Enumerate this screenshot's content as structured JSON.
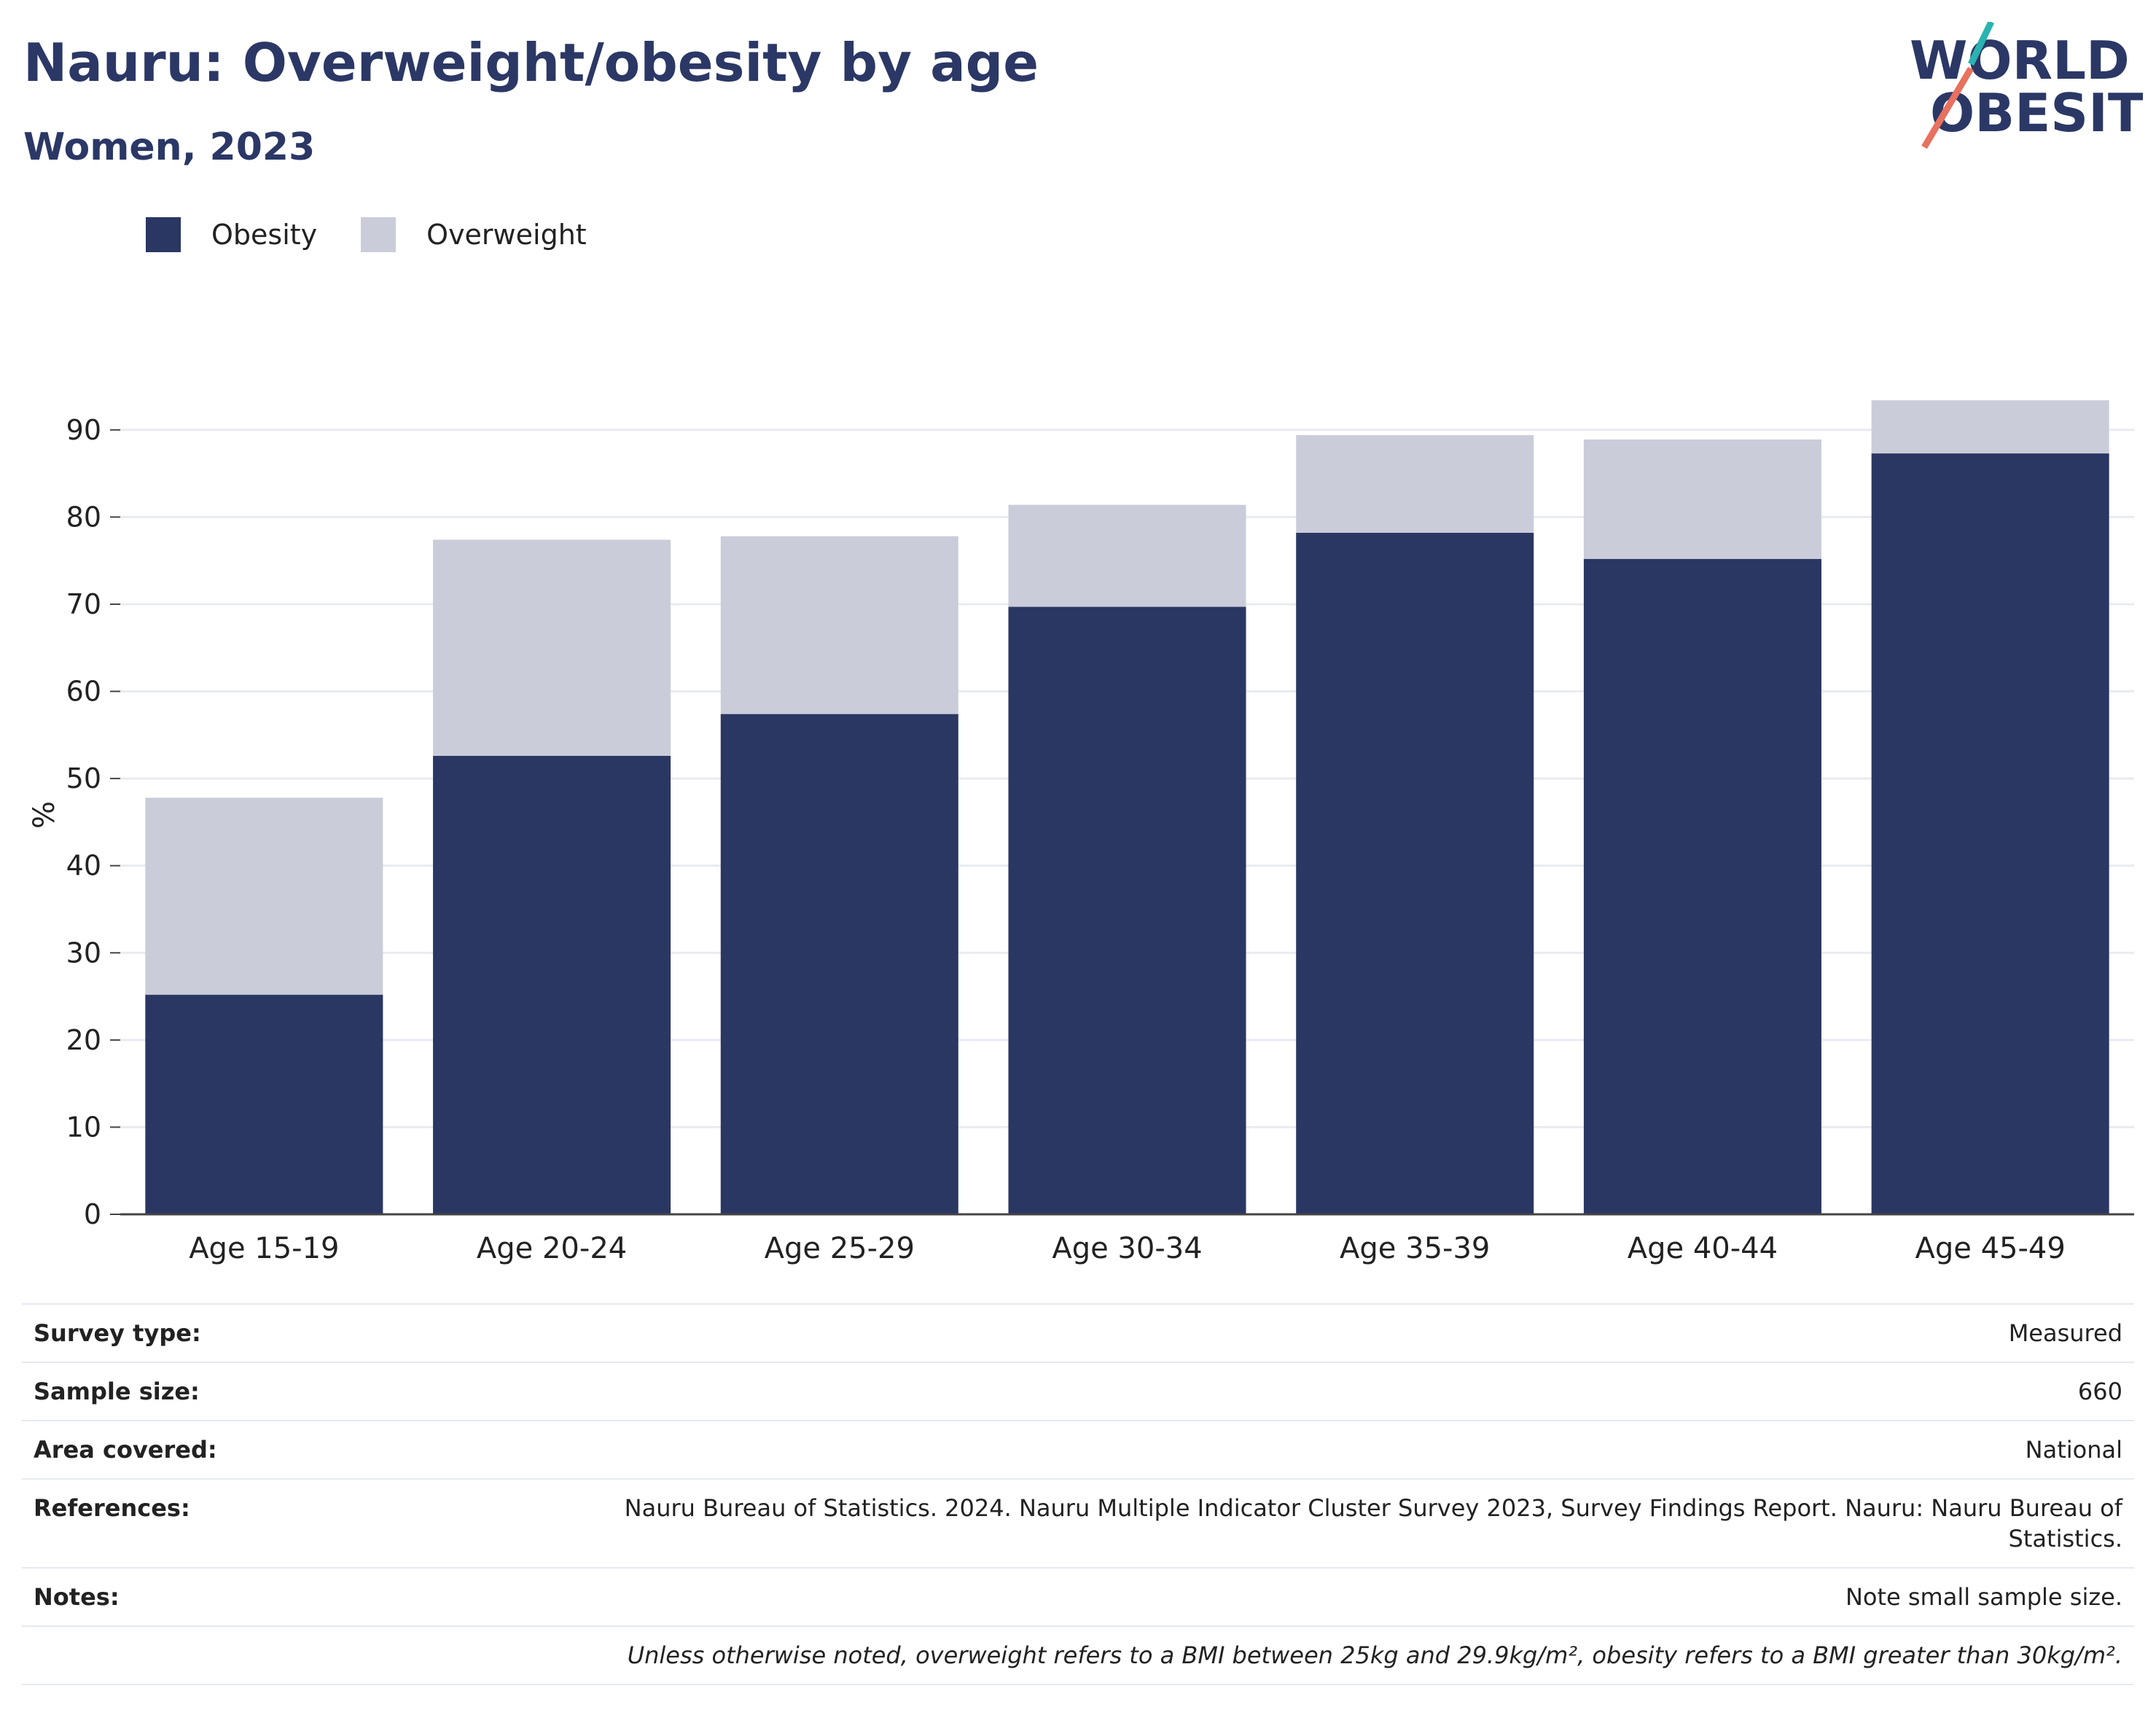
{
  "header": {
    "title": "Nauru: Overweight/obesity by age",
    "subtitle": "Women, 2023"
  },
  "logo": {
    "line1": "WORLD",
    "line2": "OBESITY",
    "colors": {
      "text": "#2b3866",
      "slash_top": "#2ab3b0",
      "slash_bottom": "#e8715f"
    }
  },
  "chart_data": {
    "type": "bar",
    "stacked": true,
    "categories": [
      "Age 15-19",
      "Age 20-24",
      "Age 25-29",
      "Age 30-34",
      "Age 35-39",
      "Age 40-44",
      "Age 45-49"
    ],
    "series": [
      {
        "name": "Obesity",
        "color": "#2b3763",
        "values": [
          25.2,
          52.6,
          57.4,
          69.7,
          78.2,
          75.2,
          87.3
        ]
      },
      {
        "name": "Overweight",
        "color": "#cacdd9",
        "values": [
          22.6,
          24.8,
          20.4,
          11.7,
          11.2,
          13.7,
          6.1
        ]
      }
    ],
    "ylabel": "%",
    "xlabel": "",
    "ylim": [
      0,
      95
    ],
    "yticks": [
      0,
      10,
      20,
      30,
      40,
      50,
      60,
      70,
      80,
      90
    ],
    "grid": true,
    "legend_position": "top-left"
  },
  "info": {
    "rows": [
      {
        "label": "Survey type:",
        "value": "Measured"
      },
      {
        "label": "Sample size:",
        "value": "660"
      },
      {
        "label": "Area covered:",
        "value": "National"
      },
      {
        "label": "References:",
        "value": "Nauru Bureau of Statistics. 2024. Nauru Multiple Indicator Cluster Survey 2023, Survey Findings Report. Nauru: Nauru Bureau of Statistics."
      },
      {
        "label": "Notes:",
        "value": "Note small sample size."
      }
    ],
    "footnote": "Unless otherwise noted, overweight refers to a BMI between 25kg and 29.9kg/m², obesity refers to a BMI greater than 30kg/m²."
  }
}
